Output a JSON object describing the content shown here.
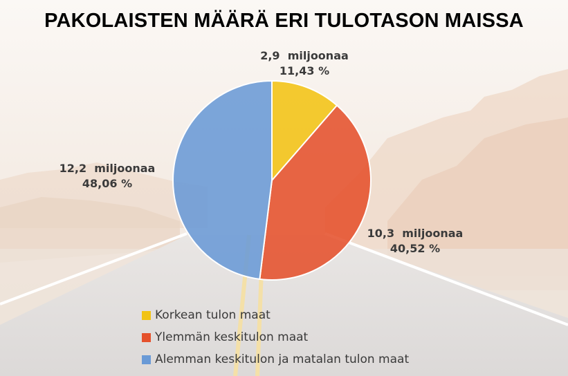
{
  "chart_data": {
    "type": "pie",
    "title": "PAKOLAISTEN MÄÄRÄ ERI TULOTASON MAISSA",
    "slices": [
      {
        "name": "Korkean tulon maat",
        "value": 2.9,
        "percent": 11.43,
        "value_label": "2,9  miljoonaa",
        "percent_label": "11,43 %",
        "color": "#f2c314"
      },
      {
        "name": "Ylemmän keskitulon maat",
        "value": 10.3,
        "percent": 40.52,
        "value_label": "10,3  miljoonaa",
        "percent_label": "40,52 %",
        "color": "#e5512c"
      },
      {
        "name": "Alemman keskitulon ja matalan tulon maat",
        "value": 12.2,
        "percent": 48.06,
        "value_label": "12,2  miljoonaa",
        "percent_label": "48,06 %",
        "color": "#6a9ad6"
      }
    ],
    "legend_position": "bottom"
  }
}
